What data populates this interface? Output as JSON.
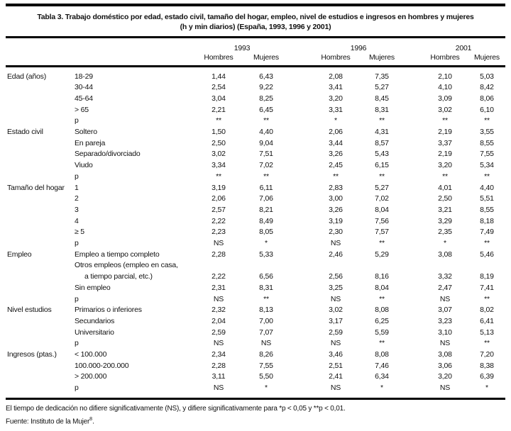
{
  "title": {
    "line1": "Tabla 3. Trabajo doméstico por edad, estado civil, tamaño del hogar, empleo, nivel de estudios e ingresos en hombres y mujeres",
    "line2": "(h y min diarios) (España, 1993, 1996 y 2001)"
  },
  "header": {
    "years": [
      "1993",
      "1996",
      "2001"
    ],
    "gender_labels": [
      "Hombres",
      "Mujeres"
    ]
  },
  "sections": [
    {
      "category": "Edad (años)",
      "rows": [
        {
          "label": "18-29",
          "values": [
            "1,44",
            "6,43",
            "2,08",
            "7,35",
            "2,10",
            "5,03"
          ]
        },
        {
          "label": "30-44",
          "values": [
            "2,54",
            "9,22",
            "3,41",
            "5,27",
            "4,10",
            "8,42"
          ]
        },
        {
          "label": "45-64",
          "values": [
            "3,04",
            "8,25",
            "3,20",
            "8,45",
            "3,09",
            "8,06"
          ]
        },
        {
          "label": "> 65",
          "values": [
            "2,21",
            "6,45",
            "3,31",
            "8,31",
            "3,02",
            "6,10"
          ]
        },
        {
          "label": "p",
          "values": [
            "**",
            "**",
            "*",
            "**",
            "**",
            "**"
          ]
        }
      ]
    },
    {
      "category": "Estado civil",
      "rows": [
        {
          "label": "Soltero",
          "values": [
            "1,50",
            "4,40",
            "2,06",
            "4,31",
            "2,19",
            "3,55"
          ]
        },
        {
          "label": "En pareja",
          "values": [
            "2,50",
            "9,04",
            "3,44",
            "8,57",
            "3,37",
            "8,55"
          ]
        },
        {
          "label": "Separado/divorciado",
          "values": [
            "3,02",
            "7,51",
            "3,26",
            "5,43",
            "2,19",
            "7,55"
          ]
        },
        {
          "label": "Viudo",
          "values": [
            "3,34",
            "7,02",
            "2,45",
            "6,15",
            "3,20",
            "5,34"
          ]
        },
        {
          "label": "p",
          "values": [
            "**",
            "**",
            "**",
            "**",
            "**",
            "**"
          ]
        }
      ]
    },
    {
      "category": "Tamaño del hogar",
      "rows": [
        {
          "label": "1",
          "values": [
            "3,19",
            "6,11",
            "2,83",
            "5,27",
            "4,01",
            "4,40"
          ]
        },
        {
          "label": "2",
          "values": [
            "2,06",
            "7,06",
            "3,00",
            "7,02",
            "2,50",
            "5,51"
          ]
        },
        {
          "label": "3",
          "values": [
            "2,57",
            "8,21",
            "3,26",
            "8,04",
            "3,21",
            "8,55"
          ]
        },
        {
          "label": "4",
          "values": [
            "2,22",
            "8,49",
            "3,19",
            "7,56",
            "3,29",
            "8,18"
          ]
        },
        {
          "label": "≥ 5",
          "values": [
            "2,23",
            "8,05",
            "2,30",
            "7,57",
            "2,35",
            "7,49"
          ]
        },
        {
          "label": "p",
          "values": [
            "NS",
            "*",
            "NS",
            "**",
            "*",
            "**"
          ]
        }
      ]
    },
    {
      "category": "Empleo",
      "rows": [
        {
          "label": "Empleo a tiempo completo",
          "values": [
            "2,28",
            "5,33",
            "2,46",
            "5,29",
            "3,08",
            "5,46"
          ]
        },
        {
          "label": "Otros empleos (empleo en casa,",
          "values": [
            "",
            "",
            "",
            "",
            "",
            ""
          ]
        },
        {
          "label": "a tiempo parcial, etc.)",
          "indent": true,
          "values": [
            "2,22",
            "6,56",
            "2,56",
            "8,16",
            "3,32",
            "8,19"
          ]
        },
        {
          "label": "Sin empleo",
          "values": [
            "2,31",
            "8,31",
            "3,25",
            "8,04",
            "2,47",
            "7,41"
          ]
        },
        {
          "label": "p",
          "values": [
            "NS",
            "**",
            "NS",
            "**",
            "NS",
            "**"
          ]
        }
      ]
    },
    {
      "category": "Nivel estudios",
      "rows": [
        {
          "label": "Primarios o inferiores",
          "values": [
            "2,32",
            "8,13",
            "3,02",
            "8,08",
            "3,07",
            "8,02"
          ]
        },
        {
          "label": "Secundarios",
          "values": [
            "2,04",
            "7,00",
            "3,17",
            "6,25",
            "3,23",
            "6,41"
          ]
        },
        {
          "label": "Universitario",
          "values": [
            "2,59",
            "7,07",
            "2,59",
            "5,59",
            "3,10",
            "5,13"
          ]
        },
        {
          "label": "p",
          "values": [
            "NS",
            "NS",
            "NS",
            "**",
            "NS",
            "**"
          ]
        }
      ]
    },
    {
      "category": "Ingresos (ptas.)",
      "rows": [
        {
          "label": "< 100.000",
          "values": [
            "2,34",
            "8,26",
            "3,46",
            "8,08",
            "3,08",
            "7,20"
          ]
        },
        {
          "label": "100.000-200.000",
          "values": [
            "2,28",
            "7,55",
            "2,51",
            "7,46",
            "3,06",
            "8,38"
          ]
        },
        {
          "label": "> 200.000",
          "values": [
            "3,11",
            "5,50",
            "2,41",
            "6,34",
            "3,20",
            "6,39"
          ]
        },
        {
          "label": "p",
          "values": [
            "NS",
            "*",
            "NS",
            "*",
            "NS",
            "*"
          ]
        }
      ]
    }
  ],
  "footer": {
    "note": "El tiempo de dedicación no difiere significativamente (NS), y difiere significativamente para *p < 0,05 y **p < 0,01.",
    "source_prefix": "Fuente: Instituto de la Mujer",
    "source_ref": "8",
    "source_suffix": "."
  }
}
